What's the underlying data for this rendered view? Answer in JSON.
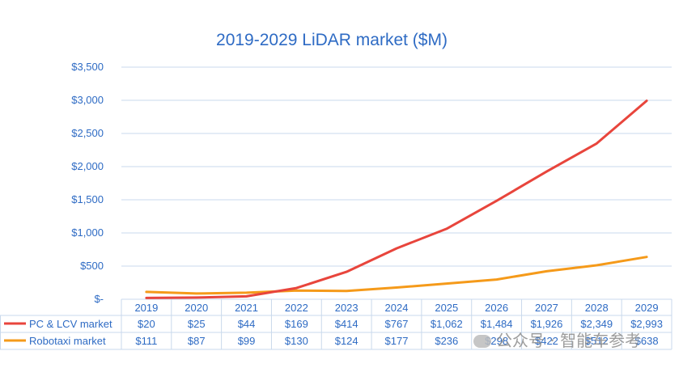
{
  "chart_data": {
    "type": "line",
    "title": "2019-2029 LiDAR market ($M)",
    "categories": [
      "2019",
      "2020",
      "2021",
      "2022",
      "2023",
      "2024",
      "2025",
      "2026",
      "2027",
      "2028",
      "2029"
    ],
    "y_tick_labels": [
      "$-",
      "$500",
      "$1,000",
      "$1,500",
      "$2,000",
      "$2,500",
      "$3,000",
      "$3,500"
    ],
    "ylim": [
      0,
      3500
    ],
    "grid": true,
    "legend": "data-table",
    "series": [
      {
        "name": "PC & LCV market",
        "color": "#e8453c",
        "values": [
          20,
          25,
          44,
          169,
          414,
          767,
          1062,
          1484,
          1926,
          2349,
          2993
        ],
        "labels": [
          "$20",
          "$25",
          "$44",
          "$169",
          "$414",
          "$767",
          "$1,062",
          "$1,484",
          "$1,926",
          "$2,349",
          "$2,993"
        ]
      },
      {
        "name": "Robotaxi market",
        "color": "#f59a1a",
        "values": [
          111,
          87,
          99,
          130,
          124,
          177,
          236,
          298,
          422,
          512,
          638
        ],
        "labels": [
          "$111",
          "$87",
          "$99",
          "$130",
          "$124",
          "$177",
          "$236",
          "$298",
          "$422",
          "$512",
          "$638"
        ]
      }
    ]
  },
  "watermark": {
    "text": "公众号 · 智能车参考",
    "icon": "wechat-icon"
  }
}
